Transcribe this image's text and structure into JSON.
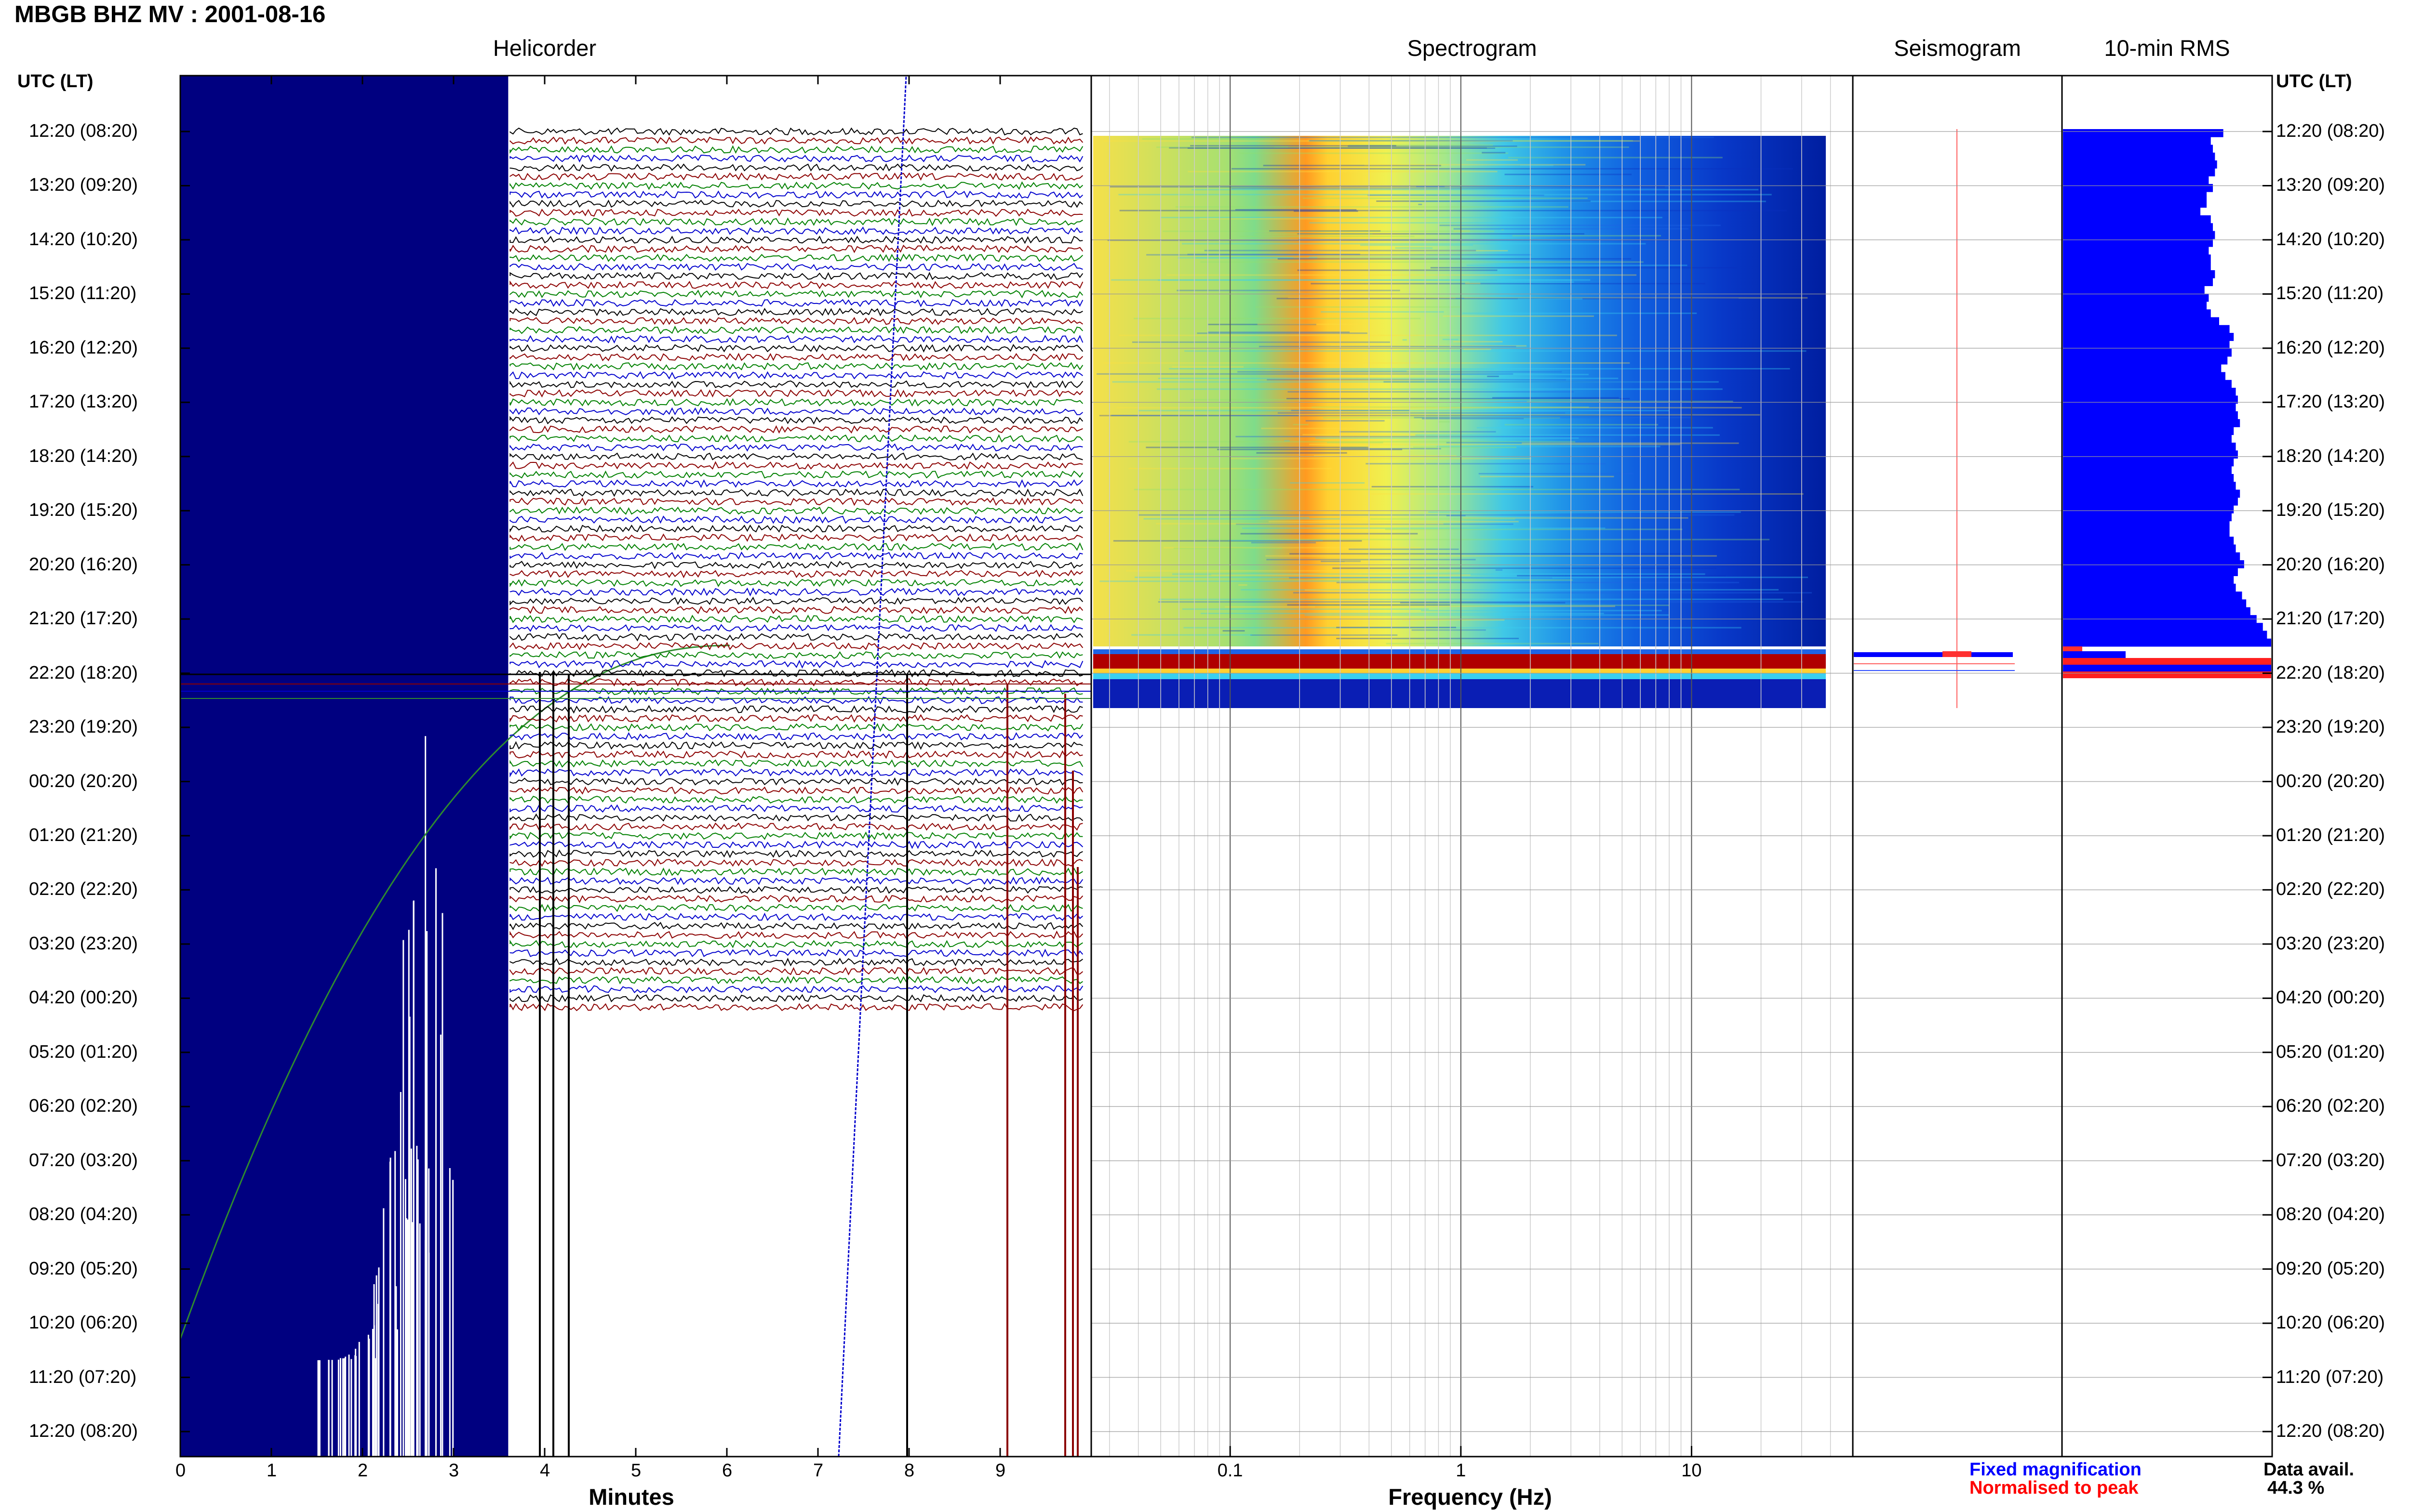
{
  "header": {
    "title": "MBGB BHZ MV : 2001-08-16"
  },
  "panels": {
    "helicorder": "Helicorder",
    "spectrogram": "Spectrogram",
    "seismogram": "Seismogram",
    "rms": "10-min RMS"
  },
  "time_axis": {
    "header_left": "UTC (LT)",
    "header_right": "UTC (LT)",
    "labels": [
      "12:20 (08:20)",
      "13:20 (09:20)",
      "14:20 (10:20)",
      "15:20 (11:20)",
      "16:20 (12:20)",
      "17:20 (13:20)",
      "18:20 (14:20)",
      "19:20 (15:20)",
      "20:20 (16:20)",
      "21:20 (17:20)",
      "22:20 (18:20)",
      "23:20 (19:20)",
      "00:20 (20:20)",
      "01:20 (21:20)",
      "02:20 (22:20)",
      "03:20 (23:20)",
      "04:20 (00:20)",
      "05:20 (01:20)",
      "06:20 (02:20)",
      "07:20 (03:20)",
      "08:20 (04:20)",
      "09:20 (05:20)",
      "10:20 (06:20)",
      "11:20 (07:20)",
      "12:20 (08:20)"
    ]
  },
  "legend": {
    "fixed": "Fixed magnification",
    "normalised": "Normalised to peak",
    "avail_label": "Data avail.",
    "avail_value": "44.3 %"
  },
  "colors": {
    "helicorder_traces": [
      "#000000",
      "#8b0000",
      "#008000",
      "#0000cd"
    ],
    "data_gap": "#000080",
    "rms_fixed": "#0000ff",
    "rms_normalised": "#ff0000"
  },
  "chart_data": [
    {
      "type": "helicorder",
      "title": "Helicorder",
      "xlabel": "Minutes",
      "x_ticks": [
        0,
        1,
        2,
        3,
        4,
        5,
        6,
        7,
        8,
        9
      ],
      "xlim": [
        0,
        10
      ],
      "rows": 145,
      "row_minutes": 10,
      "data_gap_minutes": [
        0,
        3.6
      ],
      "data_end_row": 98
    },
    {
      "type": "heatmap",
      "title": "Spectrogram",
      "xlabel": "Frequency (Hz)",
      "x_scale": "log",
      "xlim": [
        0.025,
        50
      ],
      "x_tick_labels": [
        "0.1",
        "1",
        "10"
      ],
      "x_tick_values": [
        0.1,
        1,
        10
      ],
      "energy_peak_hz": 0.3
    },
    {
      "type": "line",
      "title": "Seismogram",
      "legend": [
        "Fixed magnification",
        "Normalised to peak"
      ]
    },
    {
      "type": "bar",
      "title": "10-min RMS",
      "orientation": "horizontal",
      "fixed_magnification": [
        0.77,
        0.71,
        0.72,
        0.73,
        0.74,
        0.73,
        0.7,
        0.72,
        0.69,
        0.69,
        0.66,
        0.71,
        0.72,
        0.73,
        0.72,
        0.7,
        0.71,
        0.71,
        0.73,
        0.72,
        0.68,
        0.7,
        0.69,
        0.71,
        0.75,
        0.8,
        0.82,
        0.8,
        0.81,
        0.79,
        0.76,
        0.78,
        0.81,
        0.83,
        0.84,
        0.83,
        0.84,
        0.85,
        0.82,
        0.81,
        0.83,
        0.84,
        0.82,
        0.81,
        0.82,
        0.83,
        0.85,
        0.84,
        0.82,
        0.81,
        0.8,
        0.8,
        0.82,
        0.83,
        0.85,
        0.87,
        0.84,
        0.82,
        0.83,
        0.86,
        0.88,
        0.9,
        0.93,
        0.96,
        0.98,
        1.0
      ],
      "normalised_to_peak_rows": [
        3,
        3
      ]
    }
  ]
}
